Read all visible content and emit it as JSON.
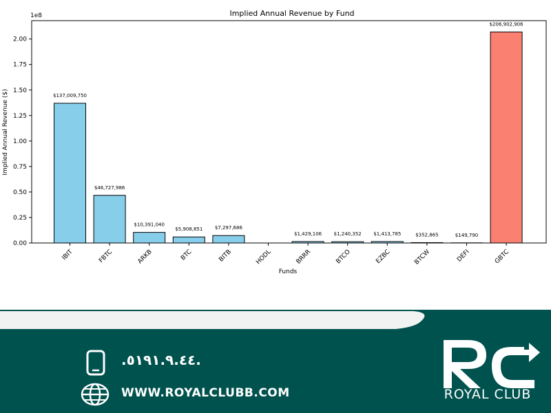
{
  "chart_data": {
    "type": "bar",
    "title": "Implied Annual Revenue by Fund",
    "xlabel": "Funds",
    "ylabel": "Implied Annual Revenue ($)",
    "scale_label": "1e8",
    "ylim": [
      0,
      218000000
    ],
    "y_ticks": [
      0,
      25000000,
      50000000,
      75000000,
      100000000,
      125000000,
      150000000,
      175000000,
      200000000
    ],
    "y_tick_labels": [
      "0.00",
      "0.25",
      "0.50",
      "0.75",
      "1.00",
      "1.25",
      "1.50",
      "1.75",
      "2.00"
    ],
    "categories": [
      "IBIT",
      "FBTC",
      "ARKB",
      "BTC",
      "BITB",
      "HODL",
      "BRRR",
      "BTCO",
      "EZBC",
      "BTCW",
      "DEFI",
      "GBTC"
    ],
    "values": [
      137009750,
      46727986,
      10391040,
      5908851,
      7297686,
      0,
      1429106,
      1240352,
      1413785,
      352865,
      149790,
      206902906
    ],
    "data_labels": [
      "$137,009,750",
      "$46,727,986",
      "$10,391,040",
      "$5,908,851",
      "$7,297,686",
      "",
      "$1,429,106",
      "$1,240,352",
      "$1,413,785",
      "$352,865",
      "$149,790",
      "$206,902,906"
    ],
    "colors": [
      "#87ceeb",
      "#87ceeb",
      "#87ceeb",
      "#87ceeb",
      "#87ceeb",
      "#87ceeb",
      "#87ceeb",
      "#87ceeb",
      "#87ceeb",
      "#87ceeb",
      "#87ceeb",
      "#fa8072"
    ],
    "grid": false
  },
  "footer": {
    "phone": ".٥١٩١.٩.٤٤.",
    "website": "WWW.ROYALCLUBB.COM",
    "brand_name": "ROYAL CLUB",
    "brand_initials": "RC",
    "phone_icon": "mobile-phone-icon",
    "web_icon": "globe-icon",
    "band_color": "#00524e",
    "text_color": "#ffffff"
  }
}
